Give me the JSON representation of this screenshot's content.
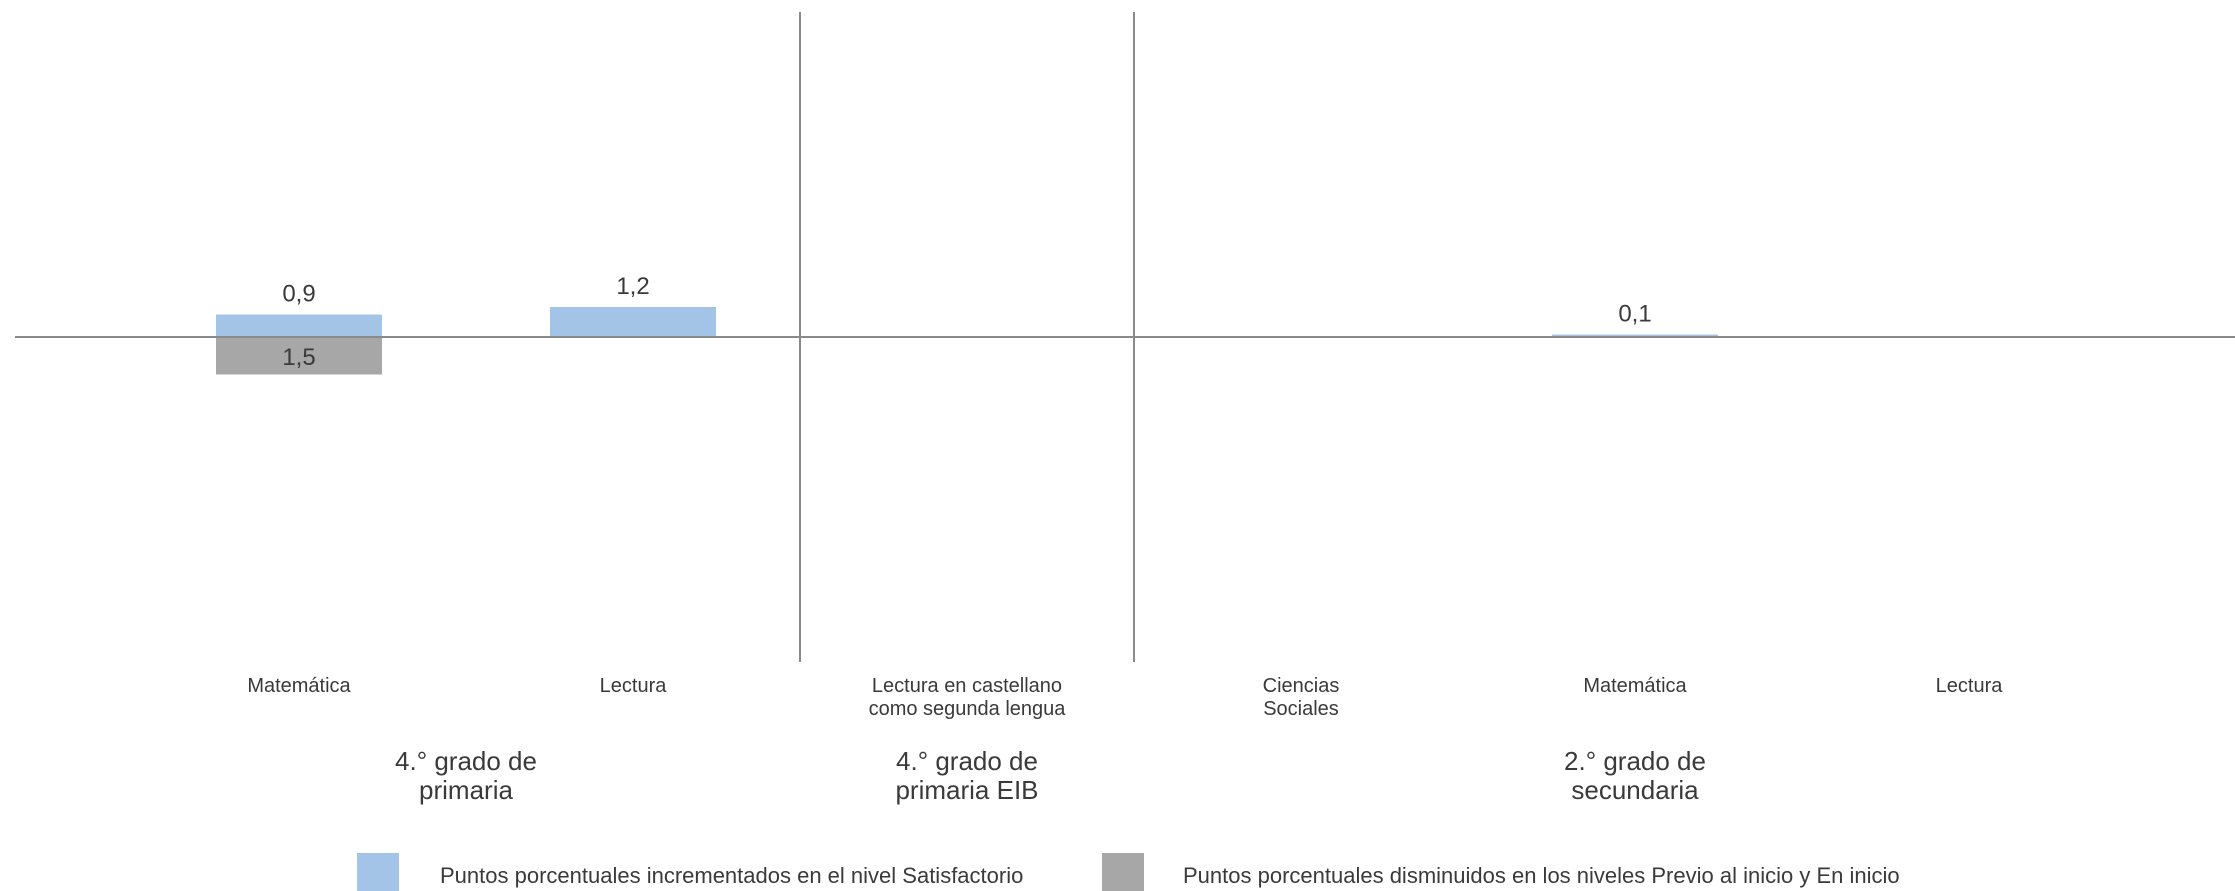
{
  "chart_data": {
    "type": "bar",
    "title": "",
    "xlabel": "",
    "ylabel": "",
    "ylim": [
      -10,
      10
    ],
    "grid": false,
    "legend_position": "bottom",
    "colors": {
      "increase": "#a3c4e6",
      "decrease": "#a7a7a7",
      "axis": "#8a8a8a"
    },
    "categories": [
      "Matemática",
      "Lectura",
      "Lectura en castellano\ncomo segunda lengua",
      "Ciencias\nSociales",
      "Matemática",
      "Lectura"
    ],
    "groups": [
      {
        "label": "4.° grado de\nprimaria",
        "categories": [
          0,
          1
        ]
      },
      {
        "label": "4.° grado de\nprimaria EIB",
        "categories": [
          2
        ]
      },
      {
        "label": "2.° grado de\nsecundaria",
        "categories": [
          3,
          4,
          5
        ]
      }
    ],
    "series": [
      {
        "name": "Puntos porcentuales incrementados en el nivel Satisfactorio",
        "values": [
          0.9,
          1.2,
          null,
          null,
          0.1,
          null
        ],
        "labels": [
          "0,9",
          "1,2",
          "",
          "",
          "0,1",
          ""
        ]
      },
      {
        "name": "Puntos porcentuales disminuidos en los niveles Previo al inicio y En inicio",
        "values": [
          -1.5,
          null,
          null,
          null,
          null,
          null
        ],
        "labels": [
          "1,5",
          "",
          "",
          "",
          "",
          ""
        ]
      }
    ]
  }
}
